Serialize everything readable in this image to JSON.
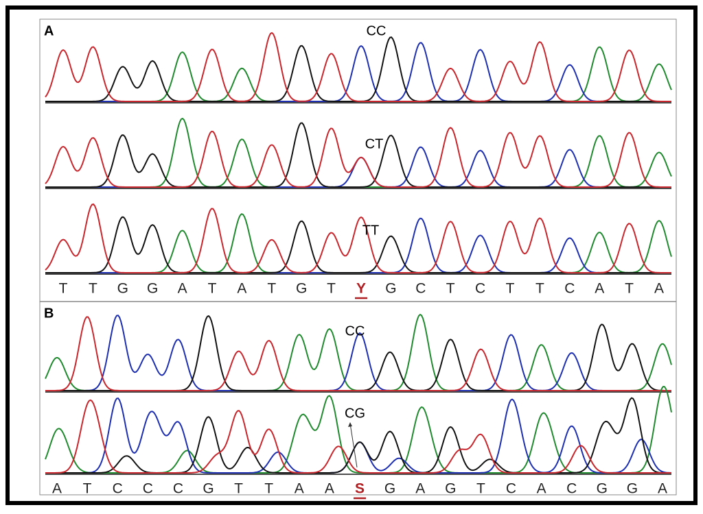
{
  "base_colors": {
    "A": "#1f8a2e",
    "C": "#1d2fb0",
    "G": "#111111",
    "T": "#c8262c"
  },
  "variant_color": "#b01e22",
  "panels": [
    {
      "label": "A",
      "traces": [
        {
          "label": "CC"
        },
        {
          "label": "CT"
        },
        {
          "label": "TT"
        }
      ],
      "sequence": [
        "T",
        "T",
        "G",
        "G",
        "A",
        "T",
        "A",
        "T",
        "G",
        "T",
        "Y",
        "G",
        "C",
        "T",
        "C",
        "T",
        "T",
        "C",
        "A",
        "T",
        "A"
      ]
    },
    {
      "label": "B",
      "traces": [
        {
          "label": "CC"
        },
        {
          "label": "CG"
        }
      ],
      "sequence": [
        "A",
        "T",
        "C",
        "C",
        "C",
        "G",
        "T",
        "T",
        "A",
        "A",
        "S",
        "G",
        "A",
        "G",
        "T",
        "C",
        "A",
        "C",
        "G",
        "G",
        "A"
      ]
    }
  ]
}
